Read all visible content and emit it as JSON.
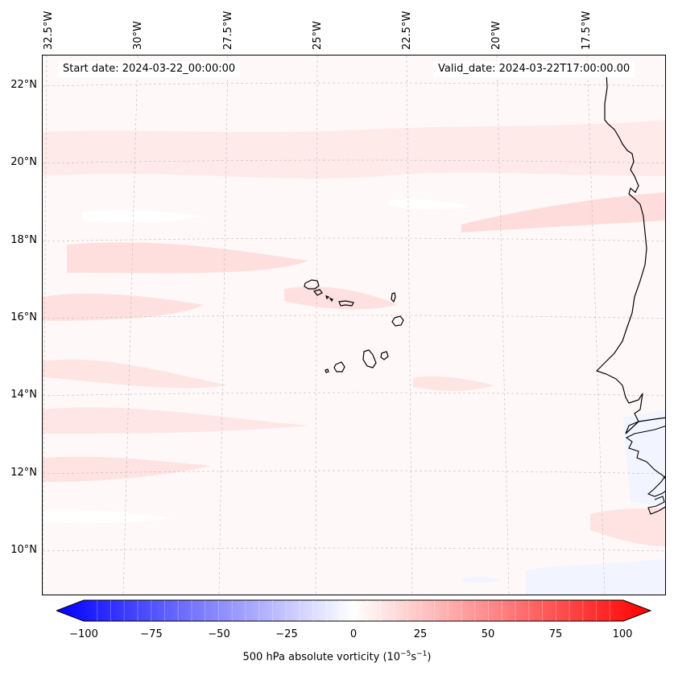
{
  "map": {
    "start_date": "Start date: 2024-03-22_00:00:00",
    "valid_date": "Valid_date: 2024-03-22T17:00:00.00",
    "lon_labels": [
      "32.5°W",
      "30°W",
      "27.5°W",
      "25°W",
      "22.5°W",
      "20°W",
      "17.5°W"
    ],
    "lat_labels": [
      "22°N",
      "20°N",
      "18°N",
      "16°N",
      "14°N",
      "12°N",
      "10°N"
    ],
    "colors": {
      "background": "#fff8f8",
      "light_red": "#ffe6e6",
      "light_blue": "#f5f7ff",
      "coast": "#000000"
    }
  },
  "colorbar": {
    "ticks": [
      "−100",
      "−75",
      "−50",
      "−25",
      "0",
      "25",
      "50",
      "75",
      "100"
    ],
    "label_main": "500 hPa absolute vorticity (10",
    "label_exp1": "−5",
    "label_mid": "s",
    "label_exp2": "−1",
    "label_end": ")",
    "min_color": "#0000ff",
    "mid_color": "#ffffff",
    "max_color": "#ff0000"
  }
}
